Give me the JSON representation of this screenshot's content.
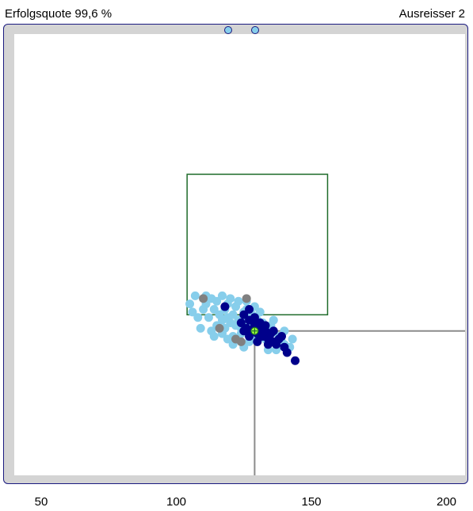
{
  "header": {
    "success_rate": "Erfolgsquote 99,6 %",
    "outliers": "Ausreisser 2"
  },
  "colors": {
    "frame_border": "#1a1a80",
    "frame_fill": "#d4d4d4",
    "target_box": "#1e6b2a",
    "crosshair": "#8c8c8c",
    "center_marker": "#9aff3a",
    "shots_light": "#87ceeb",
    "shots_dark": "#00008b",
    "shots_grey": "#808080"
  },
  "chart_data": {
    "type": "scatter",
    "xlabel": "",
    "ylabel": "",
    "xlim": [
      40,
      210
    ],
    "x_ticks": [
      "50",
      "100",
      "150",
      "200"
    ],
    "target_box": {
      "x_range": [
        104,
        156
      ]
    },
    "crosshair_x": 129,
    "series": [
      {
        "color": "#87ceeb",
        "points": [
          [
            111,
            -4
          ],
          [
            114,
            -6
          ],
          [
            116,
            -8
          ],
          [
            118,
            -6
          ],
          [
            117,
            -10
          ],
          [
            119,
            -9
          ],
          [
            120,
            -11
          ],
          [
            121,
            -8
          ],
          [
            122,
            -12
          ],
          [
            123,
            -10
          ],
          [
            124,
            -13
          ],
          [
            125,
            -11
          ],
          [
            126,
            -14
          ],
          [
            127,
            -12
          ],
          [
            128,
            -15
          ],
          [
            130,
            -13
          ],
          [
            131,
            -16
          ],
          [
            132,
            -14
          ],
          [
            133,
            -17
          ],
          [
            135,
            -15
          ],
          [
            136,
            -18
          ],
          [
            138,
            -16
          ],
          [
            140,
            -19
          ],
          [
            142,
            -20
          ],
          [
            121,
            -16
          ],
          [
            124,
            -15
          ],
          [
            127,
            -18
          ],
          [
            129,
            -17
          ],
          [
            112,
            -9
          ],
          [
            115,
            -3
          ],
          [
            119,
            -4
          ],
          [
            122,
            -5
          ],
          [
            126,
            -6
          ],
          [
            110,
            -6
          ],
          [
            108,
            -9
          ],
          [
            106,
            -7
          ],
          [
            115,
            -12
          ],
          [
            109,
            -13
          ],
          [
            113,
            -14
          ],
          [
            117,
            -15
          ],
          [
            134,
            -21
          ],
          [
            137,
            -21
          ],
          [
            139,
            -18
          ],
          [
            130,
            -10
          ],
          [
            128,
            -8
          ],
          [
            125,
            -7
          ],
          [
            123,
            -3
          ],
          [
            120,
            -2
          ],
          [
            117,
            -1
          ],
          [
            113,
            -2
          ],
          [
            111,
            -1
          ],
          [
            107,
            -1
          ],
          [
            105,
            -4
          ],
          [
            118,
            -13
          ],
          [
            132,
            -11
          ],
          [
            135,
            -12
          ],
          [
            140,
            -14
          ],
          [
            143,
            -17
          ],
          [
            121,
            -19
          ],
          [
            125,
            -20
          ],
          [
            119,
            -17
          ],
          [
            114,
            -16
          ],
          [
            126,
            -3
          ],
          [
            129,
            -5
          ],
          [
            131,
            -7
          ],
          [
            136,
            -10
          ]
        ]
      },
      {
        "color": "#00008b",
        "points": [
          [
            124,
            -11
          ],
          [
            126,
            -13
          ],
          [
            127,
            -10
          ],
          [
            128,
            -14
          ],
          [
            129,
            -12
          ],
          [
            130,
            -15
          ],
          [
            131,
            -13
          ],
          [
            132,
            -16
          ],
          [
            133,
            -14
          ],
          [
            134,
            -17
          ],
          [
            135,
            -15
          ],
          [
            136,
            -18
          ],
          [
            138,
            -17
          ],
          [
            140,
            -20
          ],
          [
            141,
            -22
          ],
          [
            144,
            -25
          ],
          [
            137,
            -19
          ],
          [
            131,
            -11
          ],
          [
            133,
            -12
          ],
          [
            125,
            -14
          ],
          [
            127,
            -16
          ],
          [
            130,
            -18
          ],
          [
            134,
            -19
          ],
          [
            129,
            -9
          ],
          [
            125,
            -8
          ],
          [
            127,
            -6
          ],
          [
            118,
            -5
          ],
          [
            139,
            -16
          ],
          [
            136,
            -14
          ]
        ]
      },
      {
        "color": "#808080",
        "points": [
          [
            116,
            -13
          ],
          [
            122,
            -17
          ],
          [
            124,
            -18
          ],
          [
            110,
            -2
          ],
          [
            126,
            -2
          ]
        ]
      }
    ],
    "center": [
      129,
      -14
    ]
  }
}
